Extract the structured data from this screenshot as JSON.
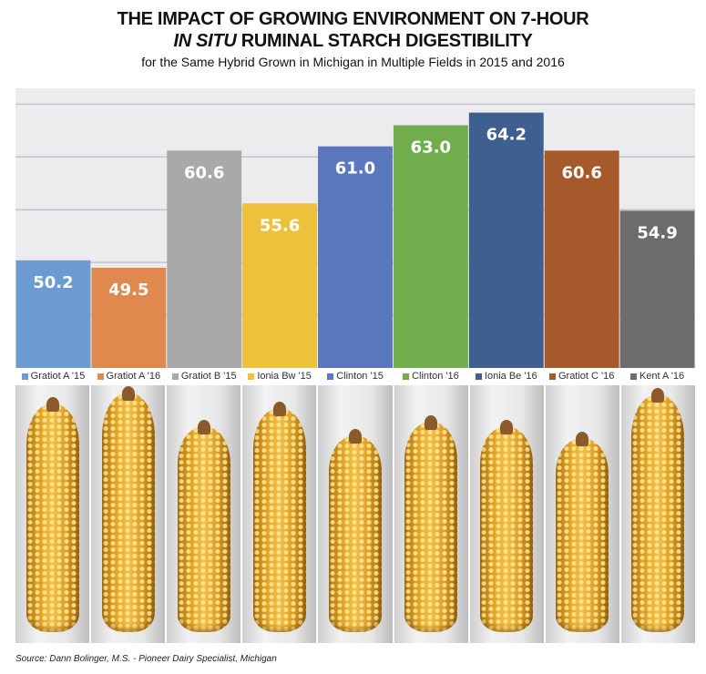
{
  "title_line1": "THE IMPACT OF GROWING ENVIRONMENT ON 7-HOUR",
  "title_line2_italic": "IN SITU",
  "title_line2_rest": " RUMINAL STARCH DIGESTIBILITY",
  "subtitle": "for the Same Hybrid Grown in Michigan in Multiple Fields in 2015 and 2016",
  "source": "Source:  Dann Bolinger, M.S. - Pioneer Dairy Specialist, Michigan",
  "chart_data": {
    "type": "bar",
    "title": "THE IMPACT OF GROWING ENVIRONMENT ON 7-HOUR IN SITU RUMINAL STARCH DIGESTIBILITY",
    "subtitle": "for the Same Hybrid Grown in Michigan in Multiple Fields in 2015 and 2016",
    "categories": [
      "Gratiot A '15",
      "Gratiot A '16",
      "Gratiot B '15",
      "Ionia Bw '15",
      "Clinton '15",
      "Clinton '16",
      "Ionia Be '16",
      "Gratiot C '16",
      "Kent A '16"
    ],
    "values": [
      50.2,
      49.5,
      60.6,
      55.6,
      61.0,
      63.0,
      64.2,
      60.6,
      54.9
    ],
    "labels": [
      "50.2",
      "49.5",
      "60.6",
      "55.6",
      "61.0",
      "63.0",
      "64.2",
      "60.6",
      "54.9"
    ],
    "colors": [
      "#6b9bd0",
      "#e0894f",
      "#a9a9a9",
      "#edc13b",
      "#5b78be",
      "#71ad4d",
      "#3e5f8f",
      "#a65a2b",
      "#6c6c6c"
    ],
    "xlabel": "",
    "ylabel": "",
    "ylim": [
      40,
      66.5
    ],
    "grid": true,
    "gridlines": [
      45,
      50,
      55,
      60,
      65
    ],
    "legend": "bottom",
    "plot_background": "#ececee"
  },
  "photos": {
    "count": 9,
    "subject": "corn-ear"
  }
}
